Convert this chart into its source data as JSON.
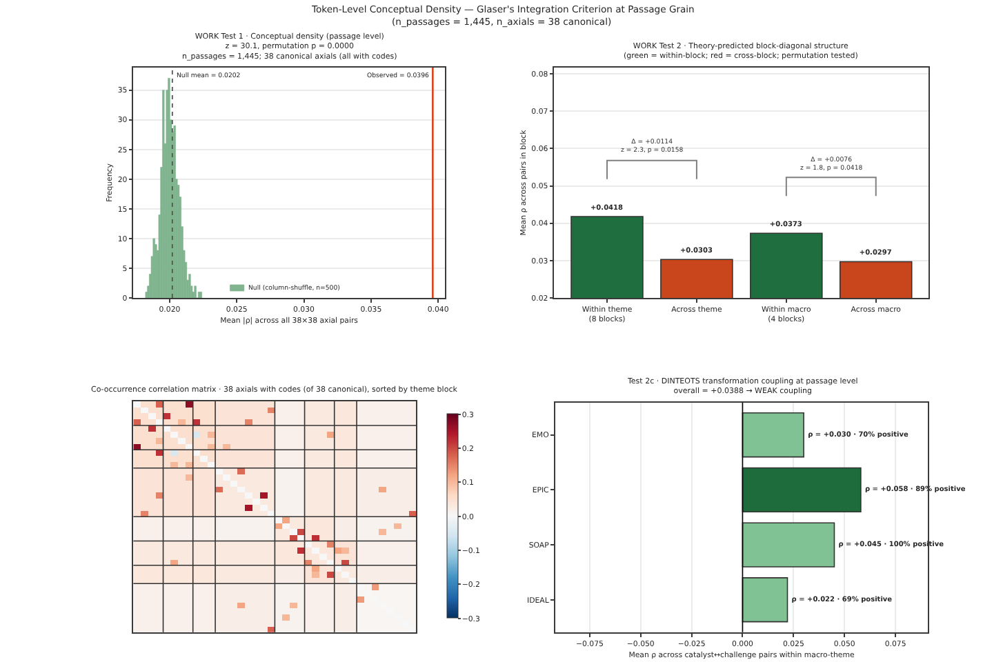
{
  "chart_data": [
    {
      "type": "other",
      "title": "Token-Level Conceptual Density — Glaser's Integration Criterion at Passage Grain",
      "subtitle": "(n_passages = 1,445, n_axials = 38 canonical)"
    },
    {
      "type": "histogram",
      "title": "WORK Test 1 · Conceptual density (passage level)\nz = 30.1, permutation p = 0.0000\nn_passages = 1,445; 38 canonical axials (all with codes)",
      "xlabel": "Mean |ρ| across all 38×38 axial pairs",
      "ylabel": "Frequency",
      "bins": [
        0.0182,
        0.01834,
        0.01848,
        0.01862,
        0.01876,
        0.0189,
        0.01904,
        0.01918,
        0.01932,
        0.01946,
        0.0196,
        0.01974,
        0.01988,
        0.02002,
        0.02016,
        0.0203,
        0.02044,
        0.02058,
        0.02072,
        0.02086,
        0.021,
        0.02114,
        0.02128,
        0.02142,
        0.02156,
        0.0217,
        0.02184,
        0.02198,
        0.02212,
        0.02226,
        0.0224
      ],
      "series": [
        {
          "name": "Null (column-shuffle, n=500)",
          "color": "#7fb48e",
          "values": [
            1,
            2,
            4,
            7,
            10,
            9,
            8,
            14,
            22,
            35,
            26,
            35,
            37,
            30,
            28,
            29,
            20,
            19,
            17,
            12,
            8,
            6,
            3,
            4,
            2,
            1,
            2,
            0,
            1,
            1
          ]
        }
      ],
      "ref_lines": [
        {
          "axis": "x",
          "value": 0.0396,
          "label": "Observed = 0.0396",
          "color": "#d9431d",
          "line_style": "solid"
        },
        {
          "axis": "x",
          "value": 0.0202,
          "label": "Null mean = 0.0202",
          "color": "#555555",
          "line_style": "dotted"
        }
      ],
      "xlim": [
        0.0173,
        0.0405
      ],
      "xticks": [
        {
          "value": 0.02,
          "label": "0.020"
        },
        0.025,
        {
          "value": 0.03,
          "label": "0.030"
        },
        0.035,
        {
          "value": 0.04,
          "label": "0.040"
        }
      ],
      "ylim": [
        0,
        38.8
      ],
      "yticks": [
        0,
        5,
        10,
        15,
        20,
        25,
        30,
        35
      ],
      "grid": "y",
      "legend": "bottom"
    },
    {
      "type": "bar",
      "title": "WORK Test 2 · Theory-predicted block-diagonal structure\n(green = within-block; red = cross-block; permutation tested)",
      "ylabel": "Mean ρ across pairs in block",
      "categories": [
        "Within theme\n(8 blocks)",
        "Across theme",
        "Within macro\n(4 blocks)",
        "Across macro"
      ],
      "values": [
        0.0418,
        0.0303,
        0.0373,
        0.0297
      ],
      "colors": [
        "#1f6e3f",
        "#c9461d",
        "#1f6e3f",
        "#c9461d"
      ],
      "value_labels": [
        "+0.0418",
        "+0.0303",
        "+0.0373",
        "+0.0297"
      ],
      "ylim": [
        0.02,
        0.0817
      ],
      "yticks": [
        0.02,
        0.03,
        0.04,
        0.05,
        0.06,
        0.07,
        0.08
      ],
      "grid": "y",
      "annotations": [
        "Δ = +0.0114\nz = 2.3, p = 0.0158",
        "Δ = +0.0076\nz = 1.8, p = 0.0418"
      ]
    },
    {
      "type": "heatmap",
      "title": "Co-occurrence correlation matrix · 38 axials with codes (of 38 canonical), sorted by theme block",
      "categories": [
        null,
        null,
        null,
        null,
        null,
        null,
        null,
        null,
        null,
        null,
        null,
        null,
        null,
        null,
        null,
        null,
        null,
        null,
        null,
        null,
        null,
        null,
        null,
        null,
        null,
        null,
        null,
        null,
        null,
        null,
        null,
        null,
        null,
        null,
        null,
        null,
        null,
        null
      ],
      "y_categories": [
        null,
        null,
        null,
        null,
        null,
        null,
        null,
        null,
        null,
        null,
        null,
        null,
        null,
        null,
        null,
        null,
        null,
        null,
        null,
        null,
        null,
        null,
        null,
        null,
        null,
        null,
        null,
        null,
        null,
        null,
        null,
        null,
        null,
        null,
        null,
        null,
        null,
        null
      ],
      "cells": [
        [
          0,
          0.05,
          0.05,
          0.18,
          0.05,
          0.05,
          0.05,
          0.27,
          0.05,
          0.05,
          0.05,
          0.04,
          0.04,
          0.04,
          0.04,
          0.04,
          0.04,
          0.04,
          0.04,
          0.015,
          0.015,
          0.015,
          0.015,
          0.03,
          0.03,
          0.03,
          0.03,
          0.035,
          0.035,
          0.035,
          0.015,
          0.015,
          0.015,
          0.015,
          0.015,
          0.015,
          0.015,
          0.015
        ],
        [
          0.05,
          0,
          0.05,
          0.05,
          0.05,
          0.05,
          0.05,
          0.05,
          0.05,
          0.05,
          0.05,
          0.04,
          0.04,
          0.04,
          0.04,
          0.04,
          0.04,
          0.04,
          0.15,
          0.015,
          0.015,
          0.015,
          0.015,
          0.03,
          0.03,
          0.03,
          0.03,
          0.035,
          0.035,
          0.035,
          0.015,
          0.015,
          0.015,
          0.015,
          0.015,
          0.015,
          0.015,
          0.015
        ],
        [
          0.05,
          0.05,
          0,
          0.05,
          0.22,
          0.05,
          0.05,
          0.05,
          0.05,
          0.05,
          0.05,
          0.04,
          0.04,
          0.04,
          0.04,
          0.04,
          0.04,
          0.04,
          0.04,
          0.015,
          0.015,
          0.015,
          0.015,
          0.03,
          0.03,
          0.03,
          0.03,
          0.035,
          0.035,
          0.035,
          0.015,
          0.015,
          0.015,
          0.015,
          0.015,
          0.015,
          0.015,
          0.015
        ],
        [
          0.18,
          0.05,
          0.05,
          0,
          0.05,
          0.05,
          0.1,
          0.05,
          0.22,
          0.05,
          0.05,
          0.04,
          0.04,
          0.04,
          0.04,
          0.15,
          0.04,
          0.04,
          0.04,
          0.015,
          0.015,
          0.015,
          0.015,
          0.03,
          0.03,
          0.03,
          0.03,
          0.035,
          0.035,
          0.035,
          0.015,
          0.015,
          0.015,
          0.015,
          0.015,
          0.015,
          0.015,
          0.015
        ],
        [
          0.05,
          0.05,
          0.22,
          0.05,
          0,
          0.05,
          0.05,
          0.05,
          0.05,
          0.05,
          0.05,
          0.04,
          0.04,
          0.04,
          0.04,
          0.04,
          0.04,
          0.04,
          0.04,
          0.015,
          0.015,
          0.015,
          0.015,
          0.03,
          0.03,
          0.03,
          0.03,
          0.035,
          0.035,
          0.035,
          0.015,
          0.015,
          0.015,
          0.015,
          0.015,
          0.015,
          0.015,
          0.015
        ],
        [
          0.05,
          0.05,
          0.05,
          0.05,
          0.05,
          0,
          0.05,
          0.05,
          -0.05,
          0.05,
          0.1,
          0.04,
          0.04,
          0.04,
          0.04,
          0.04,
          0.04,
          0.04,
          0.04,
          0.015,
          0.015,
          0.015,
          0.015,
          0.03,
          0.03,
          0.03,
          0.12,
          0.035,
          0.035,
          0.035,
          0.015,
          0.015,
          0.015,
          0.015,
          0.015,
          0.015,
          0.015,
          0.015
        ],
        [
          0.05,
          0.05,
          0.05,
          0.1,
          0.05,
          0.05,
          0,
          0.05,
          0.05,
          0.05,
          0.05,
          0.04,
          0.04,
          0.04,
          0.04,
          0.04,
          0.04,
          0.04,
          0.04,
          0.015,
          0.015,
          0.015,
          0.015,
          0.03,
          0.03,
          0.03,
          0.03,
          0.035,
          0.035,
          0.035,
          0.015,
          0.015,
          0.015,
          0.015,
          0.015,
          0.015,
          0.015,
          0.015
        ],
        [
          0.27,
          0.05,
          0.05,
          0.05,
          0.05,
          0.05,
          0.05,
          0,
          0.05,
          0.05,
          0.1,
          0.04,
          0.1,
          0.04,
          0.04,
          0.04,
          0.04,
          0.04,
          0.04,
          0.015,
          0.015,
          0.015,
          0.015,
          0.03,
          0.03,
          0.03,
          0.03,
          0.035,
          0.035,
          0.035,
          0.015,
          0.015,
          0.015,
          0.015,
          0.015,
          0.015,
          0.015,
          0.015
        ],
        [
          0.05,
          0.05,
          0.05,
          0.22,
          0.05,
          -0.05,
          0.05,
          0.05,
          0,
          0.05,
          0.05,
          0.04,
          0.04,
          0.04,
          0.04,
          0.04,
          0.04,
          0.04,
          0.04,
          0.015,
          0.015,
          0.015,
          0.015,
          0.03,
          0.03,
          0.03,
          0.03,
          0.035,
          0.035,
          0.035,
          0.015,
          0.015,
          0.015,
          0.015,
          0.015,
          0.015,
          0.015,
          0.015
        ],
        [
          0.05,
          0.05,
          0.05,
          0.05,
          0.05,
          0.05,
          0.05,
          0.05,
          0.05,
          0,
          0.05,
          0.04,
          0.04,
          0.04,
          0.04,
          0.04,
          0.04,
          0.04,
          0.04,
          0.015,
          0.015,
          0.015,
          0.015,
          0.03,
          0.03,
          0.03,
          0.03,
          0.035,
          0.035,
          0.035,
          0.015,
          0.015,
          0.015,
          0.015,
          0.015,
          0.015,
          0.015,
          0.015
        ],
        [
          0.05,
          0.05,
          0.05,
          0.05,
          0.05,
          0.1,
          0.05,
          0.1,
          0.05,
          0.05,
          0,
          0.04,
          0.04,
          0.04,
          0.04,
          0.04,
          0.04,
          0.04,
          0.04,
          0.015,
          0.015,
          0.015,
          0.015,
          0.03,
          0.03,
          0.03,
          0.03,
          0.035,
          0.035,
          0.035,
          0.015,
          0.015,
          0.015,
          0.015,
          0.015,
          0.015,
          0.015,
          0.015
        ],
        [
          0.04,
          0.04,
          0.04,
          0.04,
          0.04,
          0.04,
          0.04,
          0.04,
          0.04,
          0.04,
          0.04,
          0,
          0.03,
          0.03,
          0.17,
          0.03,
          0.03,
          0.03,
          0.03,
          0.01,
          0.01,
          0.01,
          0.01,
          0.03,
          0.03,
          0.03,
          0.03,
          0.03,
          0.03,
          0.03,
          0.02,
          0.02,
          0.02,
          0.02,
          0.02,
          0.02,
          0.02,
          0.02
        ],
        [
          0.04,
          0.04,
          0.04,
          0.04,
          0.04,
          0.04,
          0.04,
          0.1,
          0.04,
          0.04,
          0.04,
          0.03,
          0,
          0.03,
          0.03,
          0.03,
          0.03,
          0.03,
          0.03,
          0.01,
          0.01,
          0.01,
          0.01,
          0.03,
          0.03,
          0.03,
          0.03,
          0.03,
          0.03,
          0.03,
          0.02,
          0.02,
          0.02,
          0.02,
          0.02,
          0.02,
          0.02,
          0.02
        ],
        [
          0.04,
          0.04,
          0.04,
          0.04,
          0.04,
          0.04,
          0.04,
          0.04,
          0.04,
          0.04,
          0.04,
          0.03,
          0.03,
          0,
          0.03,
          0.03,
          0.03,
          0.03,
          0.03,
          0.01,
          0.01,
          0.01,
          0.01,
          0.03,
          0.03,
          0.03,
          0.03,
          0.03,
          0.03,
          0.03,
          0.02,
          0.02,
          0.02,
          0.02,
          0.02,
          0.02,
          0.02,
          0.02
        ],
        [
          0.04,
          0.04,
          0.04,
          0.04,
          0.04,
          0.04,
          0.04,
          0.04,
          0.04,
          0.04,
          0.04,
          0.17,
          0.03,
          0.03,
          0,
          0.03,
          0.03,
          0.03,
          0.03,
          0.01,
          0.01,
          0.01,
          0.01,
          0.03,
          0.03,
          0.03,
          0.03,
          0.03,
          0.03,
          0.03,
          0.02,
          0.02,
          0.02,
          0.12,
          0.02,
          0.02,
          0.02,
          0.02
        ],
        [
          0.04,
          0.04,
          0.04,
          0.15,
          0.04,
          0.04,
          0.04,
          0.04,
          0.04,
          0.04,
          0.04,
          0.03,
          0.03,
          0.03,
          0.03,
          0,
          0.03,
          0.25,
          0.03,
          0.01,
          0.01,
          0.01,
          0.01,
          0.03,
          0.03,
          0.03,
          0.03,
          0.03,
          0.03,
          0.03,
          0.02,
          0.02,
          0.02,
          0.02,
          0.02,
          0.02,
          0.02,
          0.02
        ],
        [
          0.04,
          0.04,
          0.04,
          0.04,
          0.04,
          0.04,
          0.04,
          0.04,
          0.04,
          0.04,
          0.04,
          0.03,
          0.03,
          0.03,
          0.03,
          0.03,
          0,
          0.03,
          0.03,
          0.01,
          0.01,
          0.01,
          0.01,
          0.03,
          0.03,
          0.03,
          0.03,
          0.03,
          0.03,
          0.03,
          0.02,
          0.02,
          0.02,
          0.02,
          0.02,
          0.02,
          0.02,
          0.02
        ],
        [
          0.04,
          0.04,
          0.04,
          0.04,
          0.04,
          0.04,
          0.04,
          0.04,
          0.04,
          0.04,
          0.04,
          0.03,
          0.03,
          0.03,
          0.03,
          0.25,
          0.03,
          0,
          0.03,
          0.01,
          0.01,
          0.01,
          0.01,
          0.03,
          0.03,
          0.03,
          0.03,
          0.03,
          0.03,
          0.03,
          0.02,
          0.02,
          0.02,
          0.02,
          0.02,
          0.02,
          0.02,
          0.02
        ],
        [
          0.04,
          0.15,
          0.04,
          0.04,
          0.04,
          0.04,
          0.04,
          0.04,
          0.04,
          0.04,
          0.04,
          0.03,
          0.03,
          0.03,
          0.03,
          0.03,
          0.03,
          0.03,
          0,
          0.01,
          0.01,
          0.01,
          0.01,
          0.03,
          0.03,
          0.03,
          0.03,
          0.03,
          0.03,
          0.03,
          0.02,
          0.02,
          0.02,
          0.02,
          0.02,
          0.02,
          0.02,
          0.18
        ],
        [
          0.015,
          0.015,
          0.015,
          0.015,
          0.015,
          0.015,
          0.015,
          0.015,
          0.015,
          0.015,
          0.015,
          0.01,
          0.01,
          0.01,
          0.01,
          0.01,
          0.01,
          0.01,
          0.01,
          0,
          0.12,
          0.03,
          0.03,
          0.035,
          0.035,
          0.035,
          0.035,
          0.02,
          0.02,
          0.02,
          0.01,
          0.01,
          0.01,
          0.01,
          0.01,
          0.01,
          0.01,
          0.01
        ],
        [
          0.015,
          0.015,
          0.015,
          0.015,
          0.015,
          0.015,
          0.015,
          0.015,
          0.015,
          0.015,
          0.015,
          0.01,
          0.01,
          0.01,
          0.01,
          0.01,
          0.01,
          0.01,
          0.01,
          0.12,
          0,
          0.03,
          0.03,
          0.035,
          0.035,
          0.035,
          0.035,
          0.02,
          0.02,
          0.02,
          0.01,
          0.01,
          0.01,
          0.01,
          0.01,
          0.1,
          0.01,
          0.01
        ],
        [
          0.015,
          0.015,
          0.015,
          0.015,
          0.015,
          0.015,
          0.015,
          0.015,
          0.015,
          0.015,
          0.015,
          0.01,
          0.01,
          0.01,
          0.01,
          0.01,
          0.01,
          0.01,
          0.01,
          0.03,
          0.03,
          0,
          0.2,
          0.035,
          0.035,
          0.035,
          0.035,
          0.02,
          0.02,
          0.02,
          0.01,
          0.01,
          0.01,
          0.1,
          0.01,
          0.01,
          0.01,
          0.01
        ],
        [
          0.015,
          0.015,
          0.015,
          0.015,
          0.015,
          0.015,
          0.015,
          0.015,
          0.015,
          0.015,
          0.015,
          0.01,
          0.01,
          0.01,
          0.01,
          0.01,
          0.01,
          0.01,
          0.01,
          0.03,
          0.03,
          0.2,
          0,
          0.035,
          0.22,
          0.035,
          0.035,
          0.02,
          0.02,
          0.02,
          0.01,
          0.01,
          0.01,
          0.01,
          0.01,
          0.01,
          0.01,
          0.01
        ],
        [
          0.03,
          0.03,
          0.03,
          0.03,
          0.03,
          0.03,
          0.03,
          0.03,
          0.03,
          0.03,
          0.03,
          0.03,
          0.03,
          0.03,
          0.03,
          0.03,
          0.03,
          0.03,
          0.03,
          0.035,
          0.035,
          0.035,
          0.035,
          0,
          0.035,
          0.035,
          0.15,
          0.04,
          0.04,
          0.04,
          0.015,
          0.015,
          0.015,
          0.015,
          0.015,
          0.015,
          0.015,
          0.015
        ],
        [
          0.03,
          0.03,
          0.03,
          0.03,
          0.03,
          0.03,
          0.03,
          0.03,
          0.03,
          0.03,
          0.03,
          0.03,
          0.03,
          0.03,
          0.03,
          0.03,
          0.03,
          0.03,
          0.03,
          0.035,
          0.035,
          0.035,
          0.22,
          0.035,
          0,
          0.035,
          0.035,
          0.12,
          0.1,
          0.04,
          0.015,
          0.015,
          0.015,
          0.015,
          0.015,
          0.015,
          0.015,
          0.015
        ],
        [
          0.03,
          0.03,
          0.03,
          0.03,
          0.03,
          0.03,
          0.03,
          0.03,
          0.03,
          0.03,
          0.03,
          0.03,
          0.03,
          0.03,
          0.03,
          0.03,
          0.03,
          0.03,
          0.03,
          0.035,
          0.035,
          0.035,
          0.035,
          0.035,
          0.035,
          0,
          0.035,
          0.04,
          0.04,
          0.04,
          0.015,
          0.015,
          0.015,
          0.015,
          0.015,
          0.015,
          0.015,
          0.015
        ],
        [
          0.03,
          0.03,
          0.03,
          0.03,
          0.03,
          0.12,
          0.03,
          0.03,
          0.03,
          0.03,
          0.03,
          0.03,
          0.03,
          0.03,
          0.03,
          0.03,
          0.03,
          0.03,
          0.03,
          0.035,
          0.035,
          0.035,
          0.035,
          0.15,
          0.035,
          0.035,
          0,
          0.04,
          0.2,
          0.04,
          0.015,
          0.015,
          0.015,
          0.015,
          0.015,
          0.015,
          0.015,
          0.015
        ],
        [
          0.035,
          0.035,
          0.035,
          0.035,
          0.035,
          0.035,
          0.035,
          0.035,
          0.035,
          0.035,
          0.035,
          0.03,
          0.03,
          0.03,
          0.03,
          0.03,
          0.03,
          0.03,
          0.03,
          0.02,
          0.02,
          0.02,
          0.02,
          0.04,
          0.12,
          0.04,
          0.04,
          0,
          0.03,
          0.03,
          0.02,
          0.02,
          0.02,
          0.02,
          0.02,
          0.02,
          0.02,
          0.02
        ],
        [
          0.035,
          0.035,
          0.035,
          0.035,
          0.035,
          0.035,
          0.035,
          0.035,
          0.035,
          0.035,
          0.035,
          0.03,
          0.03,
          0.03,
          0.03,
          0.03,
          0.03,
          0.03,
          0.03,
          0.02,
          0.02,
          0.02,
          0.02,
          0.04,
          0.1,
          0.04,
          0.2,
          0.03,
          0,
          0.03,
          0.02,
          0.02,
          0.02,
          0.02,
          0.02,
          0.02,
          0.02,
          0.02
        ],
        [
          0.035,
          0.035,
          0.035,
          0.035,
          0.035,
          0.035,
          0.035,
          0.035,
          0.035,
          0.035,
          0.035,
          0.03,
          0.03,
          0.03,
          0.03,
          0.03,
          0.03,
          0.03,
          0.03,
          0.02,
          0.02,
          0.02,
          0.02,
          0.04,
          0.04,
          0.04,
          0.04,
          0.03,
          0.03,
          0,
          0.02,
          0.02,
          0.02,
          0.02,
          0.02,
          0.02,
          0.02,
          0.02
        ],
        [
          0.015,
          0.015,
          0.015,
          0.015,
          0.015,
          0.015,
          0.015,
          0.015,
          0.015,
          0.015,
          0.015,
          0.02,
          0.02,
          0.02,
          0.02,
          0.02,
          0.02,
          0.02,
          0.02,
          0.01,
          0.01,
          0.01,
          0.01,
          0.015,
          0.015,
          0.015,
          0.015,
          0.02,
          0.02,
          0.02,
          0,
          0.005,
          0.13,
          0.005,
          0.005,
          0.005,
          0.005,
          0.005
        ],
        [
          0.015,
          0.015,
          0.015,
          0.015,
          0.015,
          0.015,
          0.015,
          0.015,
          0.015,
          0.015,
          0.015,
          0.02,
          0.02,
          0.02,
          0.02,
          0.02,
          0.02,
          0.02,
          0.02,
          0.01,
          0.01,
          0.01,
          0.01,
          0.015,
          0.015,
          0.015,
          0.015,
          0.02,
          0.02,
          0.02,
          0.005,
          0,
          0.005,
          0.005,
          0.005,
          0.005,
          0.005,
          0.005
        ],
        [
          0.015,
          0.015,
          0.015,
          0.015,
          0.015,
          0.015,
          0.015,
          0.015,
          0.015,
          0.015,
          0.015,
          0.02,
          0.02,
          0.02,
          0.02,
          0.02,
          0.02,
          0.02,
          0.02,
          0.01,
          0.01,
          0.01,
          0.01,
          0.015,
          0.015,
          0.015,
          0.015,
          0.02,
          0.02,
          0.02,
          0.13,
          0.005,
          0,
          0.005,
          0.005,
          0.005,
          0.005,
          0.005
        ],
        [
          0.015,
          0.015,
          0.015,
          0.015,
          0.015,
          0.015,
          0.015,
          0.015,
          0.015,
          0.015,
          0.015,
          0.02,
          0.02,
          0.02,
          0.12,
          0.02,
          0.02,
          0.02,
          0.02,
          0.01,
          0.01,
          0.1,
          0.01,
          0.015,
          0.015,
          0.015,
          0.015,
          0.02,
          0.02,
          0.02,
          0.005,
          0.005,
          0.005,
          0,
          0.005,
          0.005,
          0.005,
          0.005
        ],
        [
          0.015,
          0.015,
          0.015,
          0.015,
          0.015,
          0.015,
          0.015,
          0.015,
          0.015,
          0.015,
          0.015,
          0.02,
          0.02,
          0.02,
          0.02,
          0.02,
          0.02,
          0.02,
          0.02,
          0.01,
          0.01,
          0.01,
          0.01,
          0.015,
          0.015,
          0.015,
          0.015,
          0.02,
          0.02,
          0.02,
          0.005,
          0.005,
          0.005,
          0.005,
          0,
          0.005,
          0.005,
          0.005
        ],
        [
          0.015,
          0.015,
          0.015,
          0.015,
          0.015,
          0.015,
          0.015,
          0.015,
          0.015,
          0.015,
          0.015,
          0.02,
          0.02,
          0.02,
          0.02,
          0.02,
          0.02,
          0.02,
          0.02,
          0.01,
          0.1,
          0.01,
          0.01,
          0.015,
          0.015,
          0.015,
          0.015,
          0.02,
          0.02,
          0.02,
          0.005,
          0.005,
          0.005,
          0.005,
          0.005,
          0,
          0.005,
          0.005
        ],
        [
          0.015,
          0.015,
          0.015,
          0.015,
          0.015,
          0.015,
          0.015,
          0.015,
          0.015,
          0.015,
          0.015,
          0.02,
          0.02,
          0.02,
          0.02,
          0.02,
          0.02,
          0.02,
          0.02,
          0.01,
          0.01,
          0.01,
          0.01,
          0.015,
          0.015,
          0.015,
          0.015,
          0.02,
          0.02,
          0.02,
          0.005,
          0.005,
          0.005,
          0.005,
          0.005,
          0.005,
          0,
          0.005
        ],
        [
          0.015,
          0.015,
          0.015,
          0.015,
          0.015,
          0.015,
          0.015,
          0.015,
          0.015,
          0.015,
          0.015,
          0.02,
          0.02,
          0.02,
          0.02,
          0.02,
          0.02,
          0.02,
          0.18,
          0.01,
          0.01,
          0.01,
          0.01,
          0.015,
          0.015,
          0.015,
          0.015,
          0.02,
          0.02,
          0.02,
          0.005,
          0.005,
          0.005,
          0.005,
          0.005,
          0.005,
          0.005,
          0
        ]
      ],
      "clim": [
        -0.3,
        0.3
      ],
      "cticks": [
        {
          "value": -0.3,
          "label": "−0.3"
        },
        {
          "value": -0.2,
          "label": "−0.2"
        },
        {
          "value": -0.1,
          "label": "−0.1"
        },
        {
          "value": 0,
          "label": "0.0"
        },
        0.1,
        0.2,
        0.3
      ]
    },
    {
      "type": "bar",
      "orientation": "horizontal",
      "title": "Test 2c · DINTEOTS transformation coupling at passage level\noverall = +0.0388 → WEAK coupling",
      "xlabel": "Mean ρ across catalyst↔challenge pairs within macro-theme",
      "categories": [
        "EMO",
        "EPIC",
        "SOAP",
        "IDEAL"
      ],
      "values": [
        0.03,
        0.058,
        0.045,
        0.022
      ],
      "colors": [
        "#80c294",
        "#1e6b3b",
        "#80c294",
        "#80c294"
      ],
      "value_labels": [
        "ρ = +0.030 · 70% positive",
        "ρ = +0.058 · 89% positive",
        "ρ = +0.045 · 100% positive",
        "ρ = +0.022 · 69% positive"
      ],
      "xlim": [
        -0.092,
        0.091
      ],
      "xticks": [
        {
          "value": -0.075,
          "label": "−0.075"
        },
        {
          "value": -0.05,
          "label": "−0.050"
        },
        {
          "value": -0.025,
          "label": "−0.025"
        },
        {
          "value": 0,
          "label": "0.000"
        },
        0.025,
        {
          "value": 0.05,
          "label": "0.050"
        },
        0.075
      ],
      "grid": "x",
      "ref_lines": [
        {
          "axis": "x",
          "value": 0,
          "color": "#000000"
        }
      ]
    }
  ]
}
